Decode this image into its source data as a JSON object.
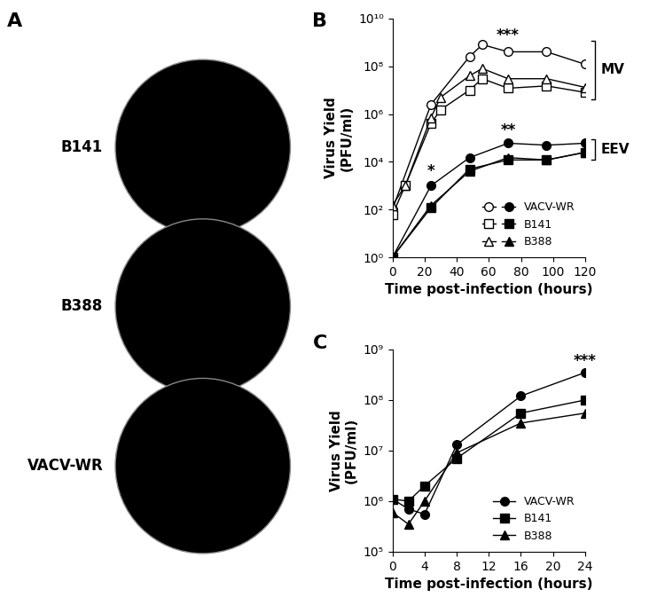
{
  "panel_labels": [
    "A",
    "B",
    "C"
  ],
  "plaque_panel": {
    "labels": [
      "B141",
      "B388",
      "VACV-WR"
    ]
  },
  "chart_data": [
    {
      "type": "line",
      "x_label": "Time post-infection (hours)",
      "y_label": "Virus Yield\n(PFU/ml)",
      "log": "y",
      "xlim": [
        0,
        120
      ],
      "xticks": [
        0,
        20,
        40,
        60,
        80,
        100,
        120
      ],
      "ylim": [
        1,
        10000000000
      ],
      "yticks": [
        {
          "value": 1,
          "label": "10⁰"
        },
        {
          "value": 100,
          "label": "10²"
        },
        {
          "value": 10000,
          "label": "10⁴"
        },
        {
          "value": 1000000,
          "label": "10⁶"
        },
        {
          "value": 100000000,
          "label": "10⁸"
        },
        {
          "value": 10000000000,
          "label": "10¹⁰"
        }
      ],
      "legend": "lower right",
      "groups": [
        {
          "name": "MV",
          "series": [
            {
              "name": "VACV-WR",
              "color": "#000000",
              "marker": "open circle",
              "x": [
                0,
                24,
                48,
                56,
                72,
                96,
                120
              ],
              "values": [
                100,
                2500000,
                250000000,
                800000000,
                400000000,
                400000000,
                120000000
              ]
            },
            {
              "name": "B141",
              "color": "#000000",
              "marker": "open square",
              "x": [
                0,
                8,
                24,
                30,
                48,
                56,
                72,
                96,
                120
              ],
              "values": [
                60,
                1000,
                400000,
                1500000,
                10000000,
                30000000,
                12000000,
                15000000,
                8000000
              ]
            },
            {
              "name": "B388",
              "color": "#000000",
              "marker": "open triangle",
              "x": [
                0,
                8,
                24,
                30,
                48,
                56,
                72,
                96,
                120
              ],
              "values": [
                150,
                1000,
                700000,
                5000000,
                40000000,
                80000000,
                30000000,
                30000000,
                13000000
              ]
            }
          ]
        },
        {
          "name": "EEV",
          "series": [
            {
              "name": "VACV-WR",
              "color": "#000000",
              "marker": "circle",
              "x": [
                0,
                24,
                48,
                72,
                96,
                120
              ],
              "values": [
                1,
                1000,
                15000,
                60000,
                50000,
                60000
              ]
            },
            {
              "name": "B141",
              "color": "#000000",
              "marker": "square",
              "x": [
                0,
                24,
                48,
                72,
                96,
                120
              ],
              "values": [
                1,
                120,
                5000,
                12000,
                12000,
                25000
              ]
            },
            {
              "name": "B388",
              "color": "#000000",
              "marker": "triangle",
              "x": [
                0,
                24,
                48,
                72,
                96,
                120
              ],
              "values": [
                1,
                150,
                4000,
                15000,
                12000,
                25000
              ]
            }
          ]
        }
      ],
      "annotations": [
        {
          "text": "***",
          "x": 72,
          "y": 2000000000
        },
        {
          "text": "**",
          "x": 72,
          "y": 200000
        },
        {
          "text": "*",
          "x": 24,
          "y": 4000
        }
      ]
    },
    {
      "type": "line",
      "x_label": "Time post-infection (hours)",
      "y_label": "Virus Yield\n(PFU/ml)",
      "log": "y",
      "xlim": [
        0,
        24
      ],
      "xticks": [
        0,
        4,
        8,
        12,
        16,
        20,
        24
      ],
      "ylim": [
        100000,
        1000000000
      ],
      "yticks": [
        {
          "value": 100000,
          "label": "10⁵"
        },
        {
          "value": 1000000,
          "label": "10⁶"
        },
        {
          "value": 10000000,
          "label": "10⁷"
        },
        {
          "value": 100000000,
          "label": "10⁸"
        },
        {
          "value": 1000000000,
          "label": "10⁹"
        }
      ],
      "legend": "lower right",
      "series": [
        {
          "name": "VACV-WR",
          "color": "#000000",
          "marker": "circle",
          "x": [
            0,
            2,
            4,
            8,
            16,
            24
          ],
          "values": [
            1100000,
            700000,
            550000,
            13000000,
            120000000,
            350000000
          ]
        },
        {
          "name": "B141",
          "color": "#000000",
          "marker": "square",
          "x": [
            0,
            2,
            4,
            8,
            16,
            24
          ],
          "values": [
            1100000,
            1000000,
            2000000,
            7000000,
            55000000,
            100000000
          ]
        },
        {
          "name": "B388",
          "color": "#000000",
          "marker": "triangle",
          "x": [
            0,
            2,
            4,
            8,
            16,
            24
          ],
          "values": [
            600000,
            350000,
            1000000,
            9000000,
            35000000,
            55000000
          ]
        }
      ],
      "annotations": [
        {
          "text": "***",
          "x": 24,
          "y": 600000000
        }
      ]
    }
  ]
}
